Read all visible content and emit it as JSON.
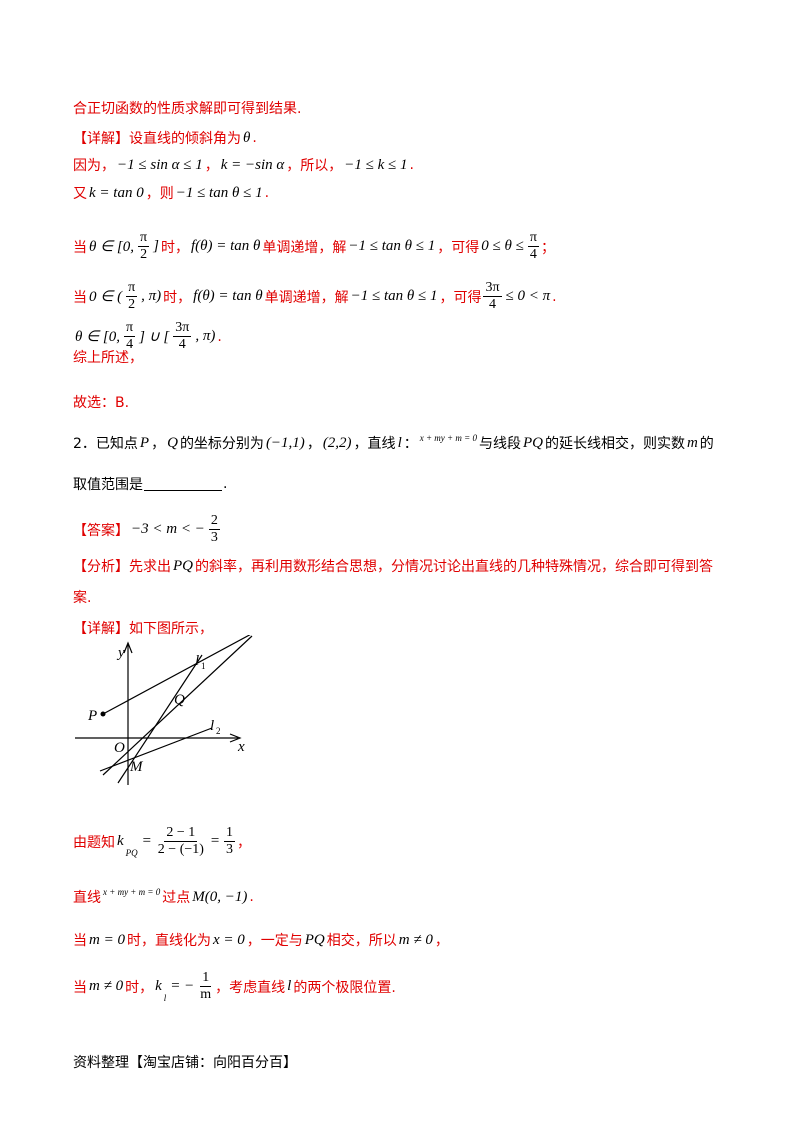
{
  "lines": [
    [
      "合正切函数的性质求解即可得到结果."
    ],
    [
      "【详解】设直线的倾斜角为",
      "θ",
      "."
    ],
    [
      "因为，",
      "−1 ≤ sin α ≤ 1",
      "，",
      "k = −sin α",
      "，所以，",
      "−1 ≤ k ≤ 1",
      "."
    ],
    [
      "又",
      "k = tan 0",
      "，则",
      "−1 ≤ tan θ ≤ 1",
      "."
    ],
    [
      "当",
      "θ ∈ [0,",
      {
        "num": "π",
        "den": "2"
      },
      "]",
      "时，",
      "f(θ) = tan θ",
      "单调递增，解",
      "−1 ≤ tan θ ≤ 1",
      "，可得",
      "0 ≤ θ ≤",
      {
        "num": "π",
        "den": "4"
      },
      "；"
    ],
    [
      "当",
      "0 ∈ (",
      {
        "num": "π",
        "den": "2"
      },
      ", π)",
      "时，",
      "f(θ) = tan θ",
      "单调递增，解",
      "−1 ≤ tan θ ≤ 1",
      "，可得",
      {
        "num": "3π",
        "den": "4"
      },
      "≤ 0 < π",
      "."
    ],
    [
      "θ ∈ [0,",
      {
        "num": "π",
        "den": "4"
      },
      "] ∪ [",
      {
        "num": "3π",
        "den": "4"
      },
      ", π)",
      "."
    ],
    [
      "故选：B."
    ],
    [
      "2．已知点 ",
      "P",
      "，",
      "Q",
      " 的坐标分别为",
      "(−1,1)",
      "，",
      "(2,2)",
      "，直线 ",
      "l",
      "：",
      "x + my + m = 0",
      "与线段 ",
      "PQ",
      " 的延长线相交，则实数 ",
      "m",
      " 的"
    ],
    [
      "取值范围是",
      "."
    ],
    [
      "【答案】",
      "−3 < m < −",
      {
        "num": "2",
        "den": "3"
      }
    ],
    [
      "【分析】先求出",
      "PQ",
      "的斜率，再利用数形结合思想，分情况讨论出直线的几种特殊情况，综合即可得到答"
    ],
    [
      "案."
    ],
    [
      "【详解】如下图所示，"
    ],
    [
      "由题知",
      "k",
      "PQ",
      "=",
      {
        "num": "2 − 1",
        "den": "2 − (−1)"
      },
      "=",
      {
        "num": "1",
        "den": "3"
      },
      "，"
    ],
    [
      "直线",
      "x + my + m = 0",
      "过点",
      "M(0, −1)",
      "."
    ],
    [
      "当",
      "m = 0",
      "时，直线化为",
      "x = 0",
      "，一定与",
      "PQ",
      "相交，所以",
      "m ≠ 0",
      "，"
    ],
    [
      "当",
      "m ≠ 0",
      "时，",
      "k",
      "l",
      " = −",
      {
        "num": "1",
        "den": "m"
      },
      "，考虑直线",
      "l",
      "的两个极限位置."
    ]
  ],
  "summary_label": "综上所述，",
  "figure": {
    "y": "y",
    "x": "x",
    "O": "O",
    "P": "P",
    "Q": "Q",
    "M": "M",
    "l1": "l",
    "l1_sub": "1",
    "l2": "l",
    "l2_sub": "2"
  },
  "footer": "资料整理【淘宝店铺：向阳百分百】"
}
